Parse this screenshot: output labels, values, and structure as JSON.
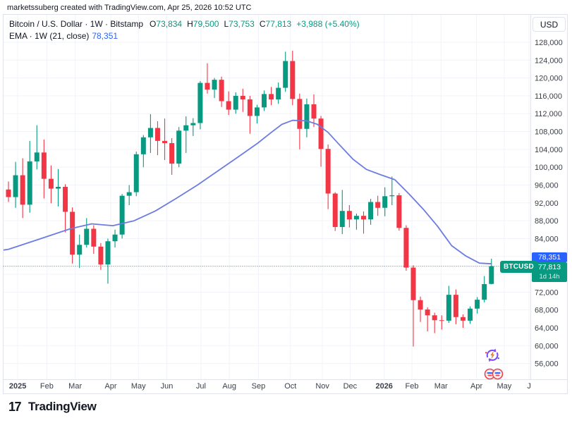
{
  "attribution": "marketssuberg created with TradingView.com, Apr 25, 2026 10:52 UTC",
  "legend": {
    "title": "Bitcoin / U.S. Dollar · 1W · Bitstamp",
    "o_label": "O",
    "o": "73,834",
    "h_label": "H",
    "h": "79,500",
    "l_label": "L",
    "l": "73,753",
    "c_label": "C",
    "c": "77,813",
    "change": "+3,988 (+5.40%)",
    "ema_title": "EMA · 1W (21, close)",
    "ema_value": "78,351"
  },
  "currency_button": "USD",
  "badges": {
    "ema": "78,351",
    "price": "77,813",
    "countdown": "1d 14h",
    "symbol": "BTCUSD"
  },
  "footer": {
    "logo_mark": "17",
    "logo_text": "TradingView"
  },
  "colors": {
    "up": "#089981",
    "down": "#f23645",
    "ema_line": "#6c7ce0",
    "accent_blue": "#2962ff",
    "grid": "#f0f3fa",
    "border": "#e0e3eb",
    "axis_text": "#3c4049",
    "text": "#131722"
  },
  "axis": {
    "y_labels": [
      "128,000",
      "124,000",
      "120,000",
      "116,000",
      "112,000",
      "108,000",
      "104,000",
      "100,000",
      "96,000",
      "92,000",
      "88,000",
      "84,000",
      "72,000",
      "68,000",
      "64,000",
      "60,000",
      "56,000"
    ],
    "x_labels": [
      {
        "label": "2025",
        "i": 1.3,
        "bold": true
      },
      {
        "label": "Feb",
        "i": 5.4,
        "bold": false
      },
      {
        "label": "Mar",
        "i": 9.4,
        "bold": false
      },
      {
        "label": "Apr",
        "i": 14.4,
        "bold": false
      },
      {
        "label": "May",
        "i": 18.3,
        "bold": false
      },
      {
        "label": "Jun",
        "i": 22.3,
        "bold": false
      },
      {
        "label": "Jul",
        "i": 27.1,
        "bold": false
      },
      {
        "label": "Aug",
        "i": 31.1,
        "bold": false
      },
      {
        "label": "Sep",
        "i": 35.2,
        "bold": false
      },
      {
        "label": "Oct",
        "i": 39.7,
        "bold": false
      },
      {
        "label": "Nov",
        "i": 44.2,
        "bold": false
      },
      {
        "label": "Dec",
        "i": 48.1,
        "bold": false
      },
      {
        "label": "2026",
        "i": 52.9,
        "bold": true
      },
      {
        "label": "Feb",
        "i": 56.8,
        "bold": false
      },
      {
        "label": "Mar",
        "i": 60.9,
        "bold": false
      },
      {
        "label": "Apr",
        "i": 65.9,
        "bold": false
      },
      {
        "label": "May",
        "i": 69.8,
        "bold": false
      },
      {
        "label": "J",
        "i": 73.3,
        "bold": false
      }
    ]
  },
  "chart_data": {
    "type": "candlestick",
    "title": "Bitcoin / U.S. Dollar · 1W · Bitstamp",
    "timeframe": "1W",
    "y_axis": {
      "min": 56000,
      "max": 128000,
      "step": 4000
    },
    "current_bar": {
      "open": 73834,
      "high": 79500,
      "low": 73753,
      "close": 77813,
      "change": 3988,
      "change_pct": 5.4
    },
    "current_price_line": 77813,
    "candles_ohlc": [
      [
        95000,
        96800,
        92200,
        93300
      ],
      [
        93300,
        101200,
        90900,
        98200
      ],
      [
        98200,
        102000,
        88600,
        91600
      ],
      [
        91600,
        105900,
        89800,
        101300
      ],
      [
        101300,
        109400,
        99500,
        103300
      ],
      [
        103300,
        106200,
        93000,
        97400
      ],
      [
        97400,
        100400,
        91900,
        95200
      ],
      [
        95200,
        99600,
        91200,
        95600
      ],
      [
        95600,
        96200,
        85400,
        90000
      ],
      [
        90000,
        91000,
        78400,
        80400
      ],
      [
        80400,
        84900,
        77400,
        82600
      ],
      [
        82600,
        88600,
        82000,
        86200
      ],
      [
        86200,
        87000,
        80600,
        82200
      ],
      [
        82200,
        83000,
        77000,
        78200
      ],
      [
        78200,
        84000,
        73900,
        83400
      ],
      [
        83400,
        86000,
        82000,
        84900
      ],
      [
        84900,
        94000,
        84000,
        93600
      ],
      [
        93600,
        96000,
        91500,
        94400
      ],
      [
        94400,
        103500,
        93500,
        102900
      ],
      [
        102900,
        107200,
        100000,
        106700
      ],
      [
        106700,
        111900,
        103200,
        108800
      ],
      [
        108800,
        110300,
        102700,
        105900
      ],
      [
        105900,
        110900,
        101600,
        105400
      ],
      [
        105400,
        106500,
        98300,
        100800
      ],
      [
        100800,
        109000,
        100000,
        108200
      ],
      [
        108200,
        111400,
        103200,
        109400
      ],
      [
        109400,
        111000,
        107000,
        109900
      ],
      [
        109900,
        119300,
        108500,
        118900
      ],
      [
        118900,
        123300,
        116500,
        117400
      ],
      [
        117400,
        120000,
        115500,
        119600
      ],
      [
        119600,
        120300,
        113500,
        114800
      ],
      [
        114800,
        117000,
        111700,
        112900
      ],
      [
        112900,
        116800,
        112000,
        116000
      ],
      [
        116000,
        117600,
        112400,
        115200
      ],
      [
        115200,
        116000,
        107500,
        111500
      ],
      [
        111500,
        114000,
        109800,
        113400
      ],
      [
        113400,
        117200,
        112600,
        116400
      ],
      [
        116400,
        118000,
        113900,
        115200
      ],
      [
        115200,
        119000,
        114200,
        117800
      ],
      [
        117800,
        125900,
        116900,
        123800
      ],
      [
        123800,
        126100,
        113900,
        115300
      ],
      [
        115300,
        116500,
        104000,
        108600
      ],
      [
        108600,
        115400,
        106700,
        114100
      ],
      [
        114100,
        116300,
        109000,
        110900
      ],
      [
        110900,
        111500,
        100100,
        104100
      ],
      [
        104100,
        105100,
        90600,
        94100
      ],
      [
        94100,
        94400,
        85700,
        86600
      ],
      [
        86600,
        94900,
        85000,
        90200
      ],
      [
        90200,
        91500,
        86500,
        88300
      ],
      [
        88300,
        89600,
        86000,
        89100
      ],
      [
        89100,
        90100,
        85100,
        88300
      ],
      [
        88300,
        92900,
        87100,
        92200
      ],
      [
        92200,
        93600,
        89100,
        90900
      ],
      [
        90900,
        95500,
        89000,
        93500
      ],
      [
        93500,
        97900,
        91500,
        93700
      ],
      [
        93700,
        94200,
        85800,
        86400
      ],
      [
        86400,
        87000,
        76800,
        77500
      ],
      [
        77500,
        78000,
        59800,
        70200
      ],
      [
        70200,
        71000,
        65300,
        68100
      ],
      [
        68100,
        68600,
        63200,
        66800
      ],
      [
        66800,
        67400,
        62800,
        65700
      ],
      [
        65700,
        66800,
        63600,
        65600
      ],
      [
        65600,
        73400,
        65100,
        71400
      ],
      [
        71400,
        72600,
        64800,
        66400
      ],
      [
        66400,
        67000,
        64000,
        65600
      ],
      [
        65600,
        68800,
        64900,
        68300
      ],
      [
        68300,
        70900,
        67200,
        70300
      ],
      [
        70300,
        75600,
        69700,
        73800
      ],
      [
        73834,
        79500,
        73753,
        77813
      ]
    ],
    "ema": {
      "period": 21,
      "timeframe": "1W",
      "value": 78351,
      "points": [
        [
          -0.8,
          81400
        ],
        [
          0,
          81600
        ],
        [
          3.8,
          83600
        ],
        [
          8.7,
          86200
        ],
        [
          11.7,
          87300
        ],
        [
          14.7,
          86900
        ],
        [
          17.7,
          88000
        ],
        [
          20.7,
          90200
        ],
        [
          23.6,
          93000
        ],
        [
          26.6,
          96000
        ],
        [
          29.6,
          99300
        ],
        [
          32.6,
          102600
        ],
        [
          35.1,
          105400
        ],
        [
          37,
          107800
        ],
        [
          38.5,
          109600
        ],
        [
          40,
          110500
        ],
        [
          42,
          110400
        ],
        [
          43.5,
          109600
        ],
        [
          45,
          107800
        ],
        [
          46.5,
          105200
        ],
        [
          48.5,
          101800
        ],
        [
          50.4,
          99500
        ],
        [
          52.4,
          98300
        ],
        [
          54.4,
          97200
        ],
        [
          56.4,
          94000
        ],
        [
          58.4,
          90600
        ],
        [
          60.4,
          86800
        ],
        [
          62.4,
          82400
        ],
        [
          64.4,
          80100
        ],
        [
          66.3,
          78500
        ],
        [
          68,
          78351
        ]
      ]
    }
  }
}
